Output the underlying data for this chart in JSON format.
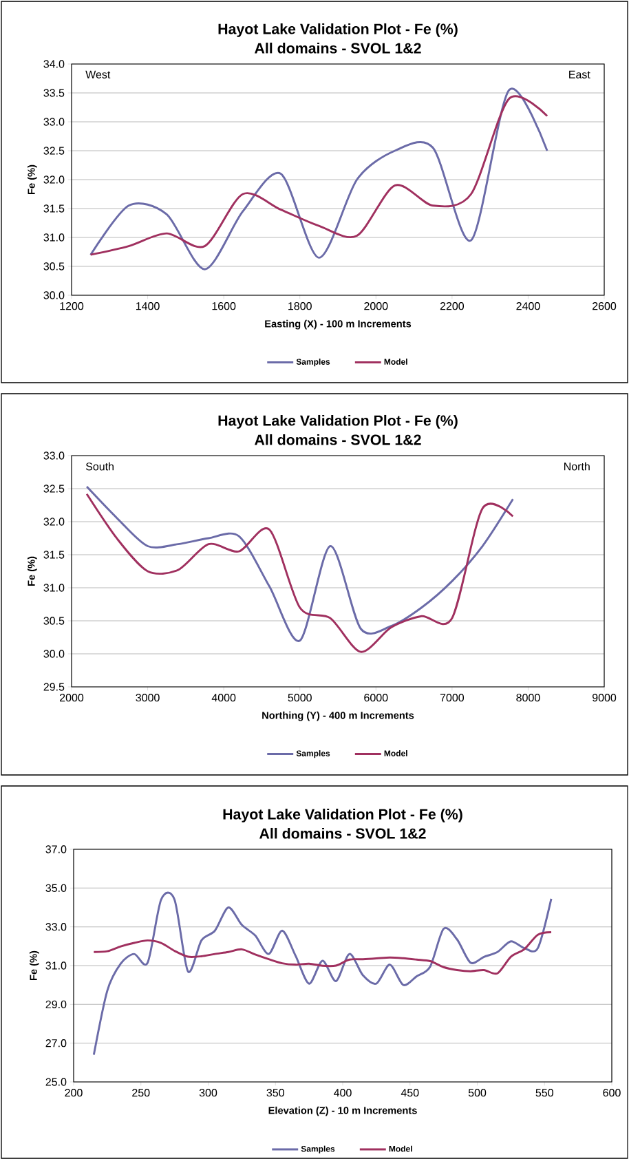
{
  "chart_data": [
    {
      "type": "line",
      "title": "Hayot Lake Validation Plot - Fe (%)",
      "subtitle": "All domains - SVOL 1&2",
      "xlabel": "Easting (X) - 100 m Increments",
      "ylabel": "Fe (%)",
      "annotations": [
        "West",
        "East"
      ],
      "x": [
        1250,
        1350,
        1450,
        1550,
        1650,
        1750,
        1850,
        1950,
        2050,
        2150,
        2250,
        2350,
        2450
      ],
      "series": [
        {
          "name": "Samples",
          "color": "#6b6ba8",
          "values": [
            30.7,
            31.55,
            31.4,
            30.45,
            31.45,
            32.1,
            30.65,
            32.0,
            32.5,
            32.55,
            30.95,
            33.55,
            32.5
          ]
        },
        {
          "name": "Model",
          "color": "#a0305f",
          "values": [
            30.7,
            30.85,
            31.07,
            30.85,
            31.75,
            31.48,
            31.2,
            31.03,
            31.9,
            31.55,
            31.75,
            33.4,
            33.1
          ]
        }
      ],
      "xlim": [
        1200,
        2600
      ],
      "xticks": [
        1200,
        1400,
        1600,
        1800,
        2000,
        2200,
        2400,
        2600
      ],
      "ylim": [
        30,
        34
      ],
      "yticks": [
        {
          "value": 30,
          "label": "30.0"
        },
        {
          "value": 30.5,
          "label": "30.5"
        },
        {
          "value": 31,
          "label": "31.0"
        },
        {
          "value": 31.5,
          "label": "31.5"
        },
        {
          "value": 32,
          "label": "32.0"
        },
        {
          "value": 32.5,
          "label": "32.5"
        },
        {
          "value": 33,
          "label": "33.0"
        },
        {
          "value": 33.5,
          "label": "33.5"
        },
        {
          "value": 34,
          "label": "34.0"
        }
      ],
      "grid": "y",
      "legend": "bottom",
      "marker": "none",
      "line_style": "solid"
    },
    {
      "type": "line",
      "title": "Hayot Lake Validation Plot - Fe (%)",
      "subtitle": "All domains - SVOL 1&2",
      "xlabel": "Northing (Y) - 400 m Increments",
      "ylabel": "Fe (%)",
      "annotations": [
        "South",
        "North"
      ],
      "x": [
        2200,
        2600,
        3000,
        3400,
        3800,
        4200,
        4600,
        5000,
        5400,
        5800,
        6200,
        6600,
        7000,
        7400,
        7800
      ],
      "series": [
        {
          "name": "Samples",
          "color": "#6b6ba8",
          "values": [
            32.53,
            32.05,
            31.63,
            31.66,
            31.75,
            31.78,
            31.02,
            30.2,
            31.63,
            30.38,
            30.42,
            30.7,
            31.1,
            31.63,
            32.34
          ]
        },
        {
          "name": "Model",
          "color": "#a0305f",
          "values": [
            32.42,
            31.74,
            31.25,
            31.27,
            31.66,
            31.55,
            31.88,
            30.7,
            30.54,
            30.03,
            30.4,
            30.57,
            30.54,
            32.2,
            32.08
          ]
        }
      ],
      "xlim": [
        2000,
        9000
      ],
      "xticks": [
        2000,
        3000,
        4000,
        5000,
        6000,
        7000,
        8000,
        9000
      ],
      "ylim": [
        29.5,
        33
      ],
      "yticks": [
        {
          "value": 29.5,
          "label": "29.5"
        },
        {
          "value": 30,
          "label": "30.0"
        },
        {
          "value": 30.5,
          "label": "30.5"
        },
        {
          "value": 31,
          "label": "31.0"
        },
        {
          "value": 31.5,
          "label": "31.5"
        },
        {
          "value": 32,
          "label": "32.0"
        },
        {
          "value": 32.5,
          "label": "32.5"
        },
        {
          "value": 33,
          "label": "33.0"
        }
      ],
      "grid": "y",
      "legend": "bottom",
      "marker": "none",
      "line_style": "solid"
    },
    {
      "type": "line",
      "title": "Hayot Lake Validation Plot - Fe (%)",
      "subtitle": "All domains - SVOL 1&2",
      "xlabel": "Elevation (Z) - 10 m Increments",
      "ylabel": "Fe (%)",
      "x": [
        215,
        225,
        235,
        245,
        255,
        265,
        275,
        285,
        295,
        305,
        315,
        325,
        335,
        345,
        355,
        365,
        375,
        385,
        395,
        405,
        415,
        425,
        435,
        445,
        455,
        465,
        475,
        485,
        495,
        505,
        515,
        525,
        535,
        545,
        555
      ],
      "series": [
        {
          "name": "Samples",
          "color": "#6b6ba8",
          "values": [
            26.4,
            29.7,
            31.1,
            31.6,
            31.15,
            34.4,
            34.4,
            30.7,
            32.3,
            32.8,
            34.0,
            33.1,
            32.55,
            31.6,
            32.8,
            31.5,
            30.07,
            31.25,
            30.2,
            31.6,
            30.5,
            30.07,
            31.05,
            30.0,
            30.45,
            30.95,
            32.9,
            32.35,
            31.15,
            31.45,
            31.7,
            32.25,
            31.9,
            31.9,
            34.45
          ]
        },
        {
          "name": "Model",
          "color": "#a0305f",
          "values": [
            31.7,
            31.74,
            31.99,
            32.17,
            32.3,
            32.17,
            31.76,
            31.46,
            31.48,
            31.6,
            31.7,
            31.84,
            31.57,
            31.33,
            31.12,
            31.05,
            31.1,
            30.99,
            31.0,
            31.31,
            31.33,
            31.37,
            31.42,
            31.38,
            31.31,
            31.23,
            30.92,
            30.77,
            30.71,
            30.77,
            30.6,
            31.46,
            31.85,
            32.59,
            32.72
          ]
        }
      ],
      "xlim": [
        200,
        600
      ],
      "xticks": [
        200,
        250,
        300,
        350,
        400,
        450,
        500,
        550,
        600
      ],
      "ylim": [
        25,
        37
      ],
      "yticks": [
        {
          "value": 25,
          "label": "25.0"
        },
        {
          "value": 27,
          "label": "27.0"
        },
        {
          "value": 29,
          "label": "29.0"
        },
        {
          "value": 31,
          "label": "31.0"
        },
        {
          "value": 33,
          "label": "33.0"
        },
        {
          "value": 35,
          "label": "35.0"
        },
        {
          "value": 37,
          "label": "37.0"
        }
      ],
      "grid": "y",
      "legend": "bottom",
      "marker": "none",
      "line_style": "solid"
    }
  ]
}
